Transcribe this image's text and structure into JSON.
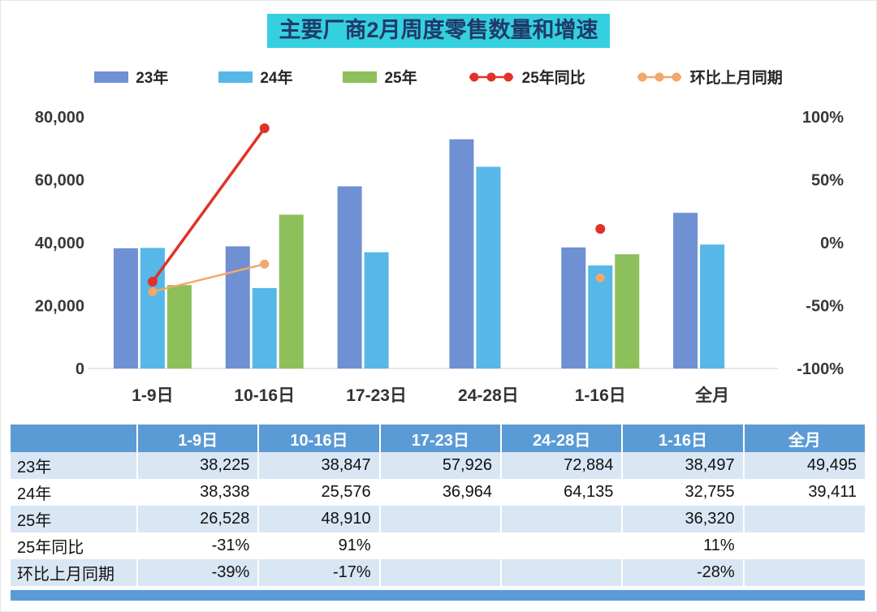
{
  "title": "主要厂商2月周度零售数量和增速",
  "colors": {
    "bar_23": "#6f90d2",
    "bar_24": "#55b8e8",
    "bar_25": "#8dbf5a",
    "line_yoy": "#e03228",
    "line_mom": "#f2a76b",
    "title_bg": "#35d0e0",
    "title_text": "#1f3a68",
    "table_header_bg": "#5b9bd5",
    "row_alt_bg": "#d9e6f4"
  },
  "legend": [
    {
      "key": "23",
      "label": "23年",
      "type": "bar",
      "color": "bar_23"
    },
    {
      "key": "24",
      "label": "24年",
      "type": "bar",
      "color": "bar_24"
    },
    {
      "key": "25",
      "label": "25年",
      "type": "bar",
      "color": "bar_25"
    },
    {
      "key": "yoy",
      "label": "25年同比",
      "type": "line",
      "color": "line_yoy"
    },
    {
      "key": "mom",
      "label": "环比上月同期",
      "type": "line",
      "color": "line_mom"
    }
  ],
  "chart_data": {
    "type": "bar+line",
    "title": "主要厂商2月周度零售数量和增速",
    "categories": [
      "1-9日",
      "10-16日",
      "17-23日",
      "24-28日",
      "1-16日",
      "全月"
    ],
    "bar_series": [
      {
        "name": "23年",
        "color": "bar_23",
        "values": [
          38225,
          38847,
          57926,
          72884,
          38497,
          49495
        ]
      },
      {
        "name": "24年",
        "color": "bar_24",
        "values": [
          38338,
          25576,
          36964,
          64135,
          32755,
          39411
        ]
      },
      {
        "name": "25年",
        "color": "bar_25",
        "values": [
          26528,
          48910,
          null,
          null,
          36320,
          null
        ]
      }
    ],
    "line_series": [
      {
        "name": "25年同比",
        "color": "line_yoy",
        "values": [
          -31,
          91,
          null,
          null,
          11,
          null
        ]
      },
      {
        "name": "环比上月同期",
        "color": "line_mom",
        "values": [
          -39,
          -17,
          null,
          null,
          -28,
          null
        ]
      }
    ],
    "left_axis": {
      "min": 0,
      "max": 80000,
      "ticks": [
        "0",
        "20,000",
        "40,000",
        "60,000",
        "80,000"
      ]
    },
    "right_axis": {
      "min": -100,
      "max": 100,
      "ticks": [
        "-100%",
        "-50%",
        "0%",
        "50%",
        "100%"
      ]
    },
    "grid": false,
    "legend_position": "top"
  },
  "table": {
    "headers": [
      "",
      "1-9日",
      "10-16日",
      "17-23日",
      "24-28日",
      "1-16日",
      "全月"
    ],
    "rows": [
      {
        "label": "23年",
        "cells": [
          "38,225",
          "38,847",
          "57,926",
          "72,884",
          "38,497",
          "49,495"
        ]
      },
      {
        "label": "24年",
        "cells": [
          "38,338",
          "25,576",
          "36,964",
          "64,135",
          "32,755",
          "39,411"
        ]
      },
      {
        "label": "25年",
        "cells": [
          "26,528",
          "48,910",
          "",
          "",
          "36,320",
          ""
        ]
      },
      {
        "label": "25年同比",
        "cells": [
          "-31%",
          "91%",
          "",
          "",
          "11%",
          ""
        ]
      },
      {
        "label": "环比上月同期",
        "cells": [
          "-39%",
          "-17%",
          "",
          "",
          "-28%",
          ""
        ]
      }
    ]
  }
}
